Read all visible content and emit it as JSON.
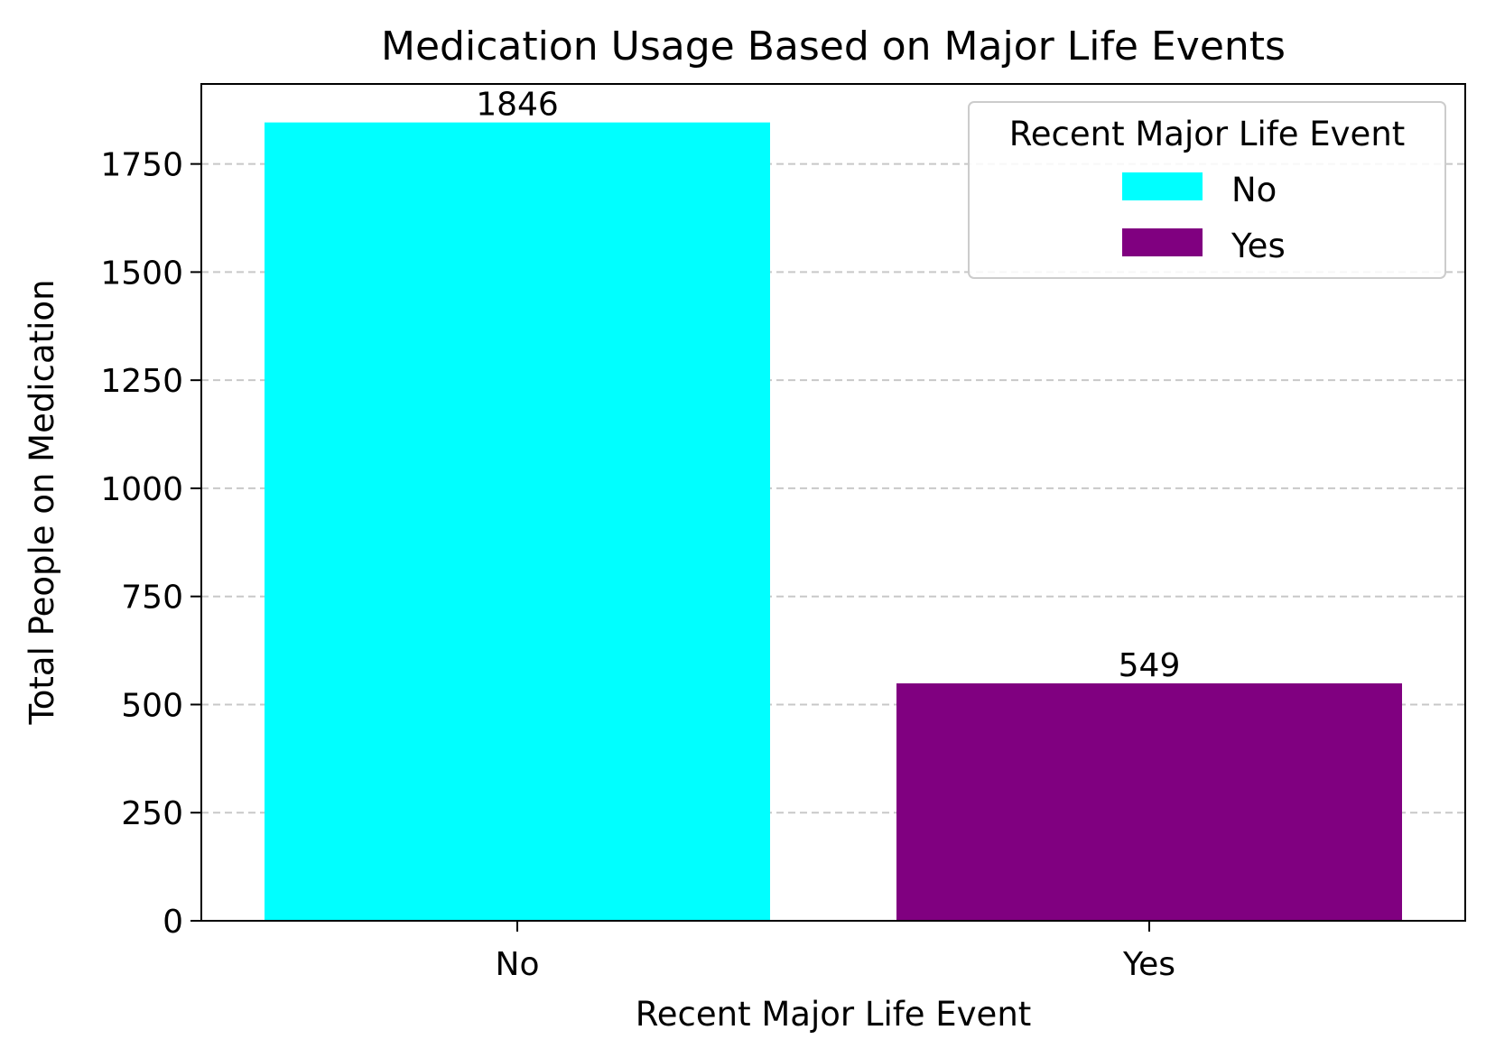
{
  "chart_data": {
    "type": "bar",
    "title": "Medication Usage Based on Major Life Events",
    "xlabel": "Recent Major Life Event",
    "ylabel": "Total People on Medication",
    "categories": [
      "No",
      "Yes"
    ],
    "values": [
      1846,
      549
    ],
    "value_labels": [
      "1846",
      "549"
    ],
    "colors": [
      "#00ffff",
      "#800080"
    ],
    "ylim": [
      0,
      1935
    ],
    "yticks": [
      0,
      250,
      500,
      750,
      1000,
      1250,
      1500,
      1750
    ],
    "grid": "y-dashed",
    "legend": {
      "title": "Recent Major Life Event",
      "placement": "top-right",
      "entries": [
        {
          "label": "No",
          "color": "#00ffff"
        },
        {
          "label": "Yes",
          "color": "#800080"
        }
      ]
    }
  }
}
